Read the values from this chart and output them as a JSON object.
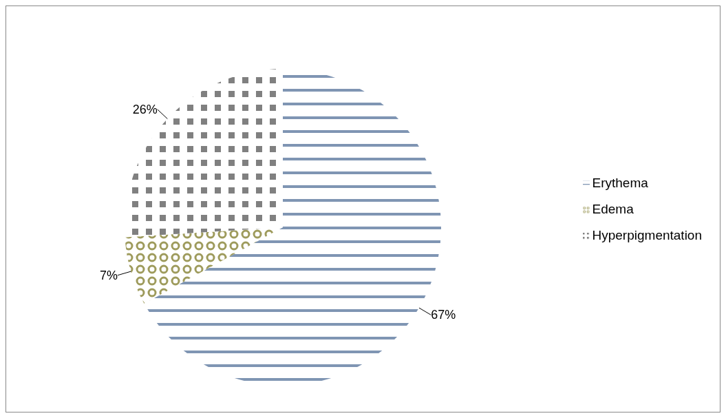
{
  "chart_data": {
    "type": "pie",
    "categories": [
      "Erythema",
      "Edema",
      "Hyperpigmentation"
    ],
    "values": [
      67,
      7,
      26
    ],
    "colors": [
      "#7f95b3",
      "#9e9b5c",
      "#808080"
    ],
    "value_labels": [
      "67%",
      "7%",
      "26%"
    ],
    "legend": "right"
  }
}
